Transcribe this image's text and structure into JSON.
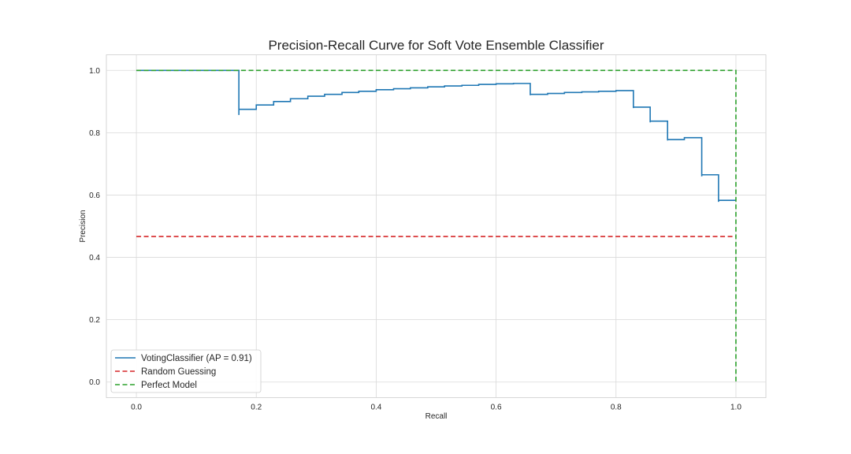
{
  "chart_data": {
    "type": "line",
    "title": "Precision-Recall Curve for Soft Vote Ensemble Classifier",
    "xlabel": "Recall",
    "ylabel": "Precision",
    "xlim": [
      -0.05,
      1.05
    ],
    "ylim": [
      -0.05,
      1.05
    ],
    "xticks": [
      0.0,
      0.2,
      0.4,
      0.6,
      0.8,
      1.0
    ],
    "xtick_labels": [
      "0.0",
      "0.2",
      "0.4",
      "0.6",
      "0.8",
      "1.0"
    ],
    "yticks": [
      0.0,
      0.2,
      0.4,
      0.6,
      0.8,
      1.0
    ],
    "ytick_labels": [
      "0.0",
      "0.2",
      "0.4",
      "0.6",
      "0.8",
      "1.0"
    ],
    "grid": true,
    "legend_position": "lower-left",
    "series": [
      {
        "name": "VotingClassifier (AP = 0.91)",
        "color": "#1f77b4",
        "dash": "solid",
        "drawstyle": "steps-post",
        "points": [
          [
            0.0,
            1.0
          ],
          [
            0.171,
            1.0
          ],
          [
            0.171,
            0.857
          ],
          [
            0.171,
            0.875
          ],
          [
            0.2,
            0.875
          ],
          [
            0.2,
            0.889
          ],
          [
            0.229,
            0.889
          ],
          [
            0.229,
            0.9
          ],
          [
            0.257,
            0.9
          ],
          [
            0.257,
            0.909
          ],
          [
            0.286,
            0.909
          ],
          [
            0.286,
            0.917
          ],
          [
            0.314,
            0.917
          ],
          [
            0.314,
            0.923
          ],
          [
            0.343,
            0.923
          ],
          [
            0.343,
            0.929
          ],
          [
            0.371,
            0.929
          ],
          [
            0.371,
            0.933
          ],
          [
            0.4,
            0.933
          ],
          [
            0.4,
            0.938
          ],
          [
            0.429,
            0.938
          ],
          [
            0.429,
            0.941
          ],
          [
            0.457,
            0.941
          ],
          [
            0.457,
            0.944
          ],
          [
            0.486,
            0.944
          ],
          [
            0.486,
            0.947
          ],
          [
            0.514,
            0.947
          ],
          [
            0.514,
            0.95
          ],
          [
            0.543,
            0.95
          ],
          [
            0.543,
            0.952
          ],
          [
            0.571,
            0.952
          ],
          [
            0.571,
            0.955
          ],
          [
            0.6,
            0.955
          ],
          [
            0.6,
            0.957
          ],
          [
            0.629,
            0.957
          ],
          [
            0.629,
            0.958
          ],
          [
            0.657,
            0.958
          ],
          [
            0.657,
            0.92
          ],
          [
            0.657,
            0.923
          ],
          [
            0.686,
            0.923
          ],
          [
            0.686,
            0.926
          ],
          [
            0.714,
            0.926
          ],
          [
            0.714,
            0.929
          ],
          [
            0.743,
            0.929
          ],
          [
            0.743,
            0.931
          ],
          [
            0.771,
            0.931
          ],
          [
            0.771,
            0.933
          ],
          [
            0.8,
            0.933
          ],
          [
            0.8,
            0.935
          ],
          [
            0.829,
            0.935
          ],
          [
            0.829,
            0.879
          ],
          [
            0.829,
            0.882
          ],
          [
            0.857,
            0.882
          ],
          [
            0.857,
            0.833
          ],
          [
            0.857,
            0.837
          ],
          [
            0.886,
            0.837
          ],
          [
            0.886,
            0.775
          ],
          [
            0.886,
            0.778
          ],
          [
            0.914,
            0.778
          ],
          [
            0.914,
            0.784
          ],
          [
            0.943,
            0.784
          ],
          [
            0.943,
            0.66
          ],
          [
            0.943,
            0.665
          ],
          [
            0.971,
            0.665
          ],
          [
            0.971,
            0.578
          ],
          [
            0.971,
            0.583
          ],
          [
            1.0,
            0.583
          ]
        ]
      },
      {
        "name": "Random Guessing",
        "color": "#d62728",
        "dash": "dashed",
        "points": [
          [
            0.0,
            0.467
          ],
          [
            1.0,
            0.467
          ]
        ]
      },
      {
        "name": "Perfect Model",
        "color": "#2ca02c",
        "dash": "dashed",
        "points": [
          [
            0.0,
            1.0
          ],
          [
            1.0,
            1.0
          ],
          [
            1.0,
            0.0
          ]
        ]
      }
    ]
  }
}
